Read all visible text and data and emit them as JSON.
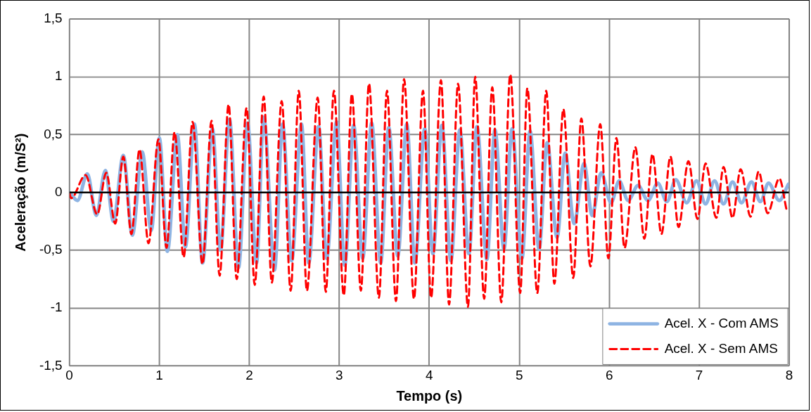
{
  "chart_data": {
    "type": "line",
    "xlabel": "Tempo (s)",
    "ylabel": "Aceleração (m/S²)",
    "xlim": [
      0,
      8
    ],
    "xticks": [
      0,
      1,
      2,
      3,
      4,
      5,
      6,
      7,
      8
    ],
    "ylim": [
      -1.5,
      1.5
    ],
    "yticks": [
      {
        "value": -1.5,
        "label": "-1,5"
      },
      -1,
      {
        "value": -0.5,
        "label": "-0,5"
      },
      0,
      {
        "value": 0.5,
        "label": "0,5"
      },
      1,
      {
        "value": 1.5,
        "label": "1,5"
      }
    ],
    "grid": true,
    "legend": "bottom right",
    "marker": "none",
    "series": [
      {
        "name": "Acel. X - Com AMS",
        "color": "#8eb4e3",
        "line_style": "solid",
        "x": [
          0,
          0.09,
          0.2,
          0.3,
          0.4,
          0.49,
          0.6,
          0.7,
          0.81,
          0.91,
          1.0,
          1.09,
          1.2,
          1.29,
          1.39,
          1.48,
          1.59,
          1.68,
          1.78,
          1.88,
          1.98,
          2.08,
          2.16,
          2.28,
          2.37,
          2.47,
          2.58,
          2.66,
          2.77,
          2.86,
          2.97,
          3.06,
          3.16,
          3.26,
          3.36,
          3.46,
          3.55,
          3.65,
          3.75,
          3.84,
          3.95,
          4.04,
          4.14,
          4.24,
          4.34,
          4.44,
          4.53,
          4.64,
          4.73,
          4.83,
          4.92,
          5.03,
          5.12,
          5.22,
          5.31,
          5.42,
          5.51,
          5.61,
          5.72,
          5.81,
          5.91,
          6.02,
          6.11,
          6.21,
          6.32,
          6.43,
          6.54,
          6.64,
          6.74,
          6.86,
          6.97,
          7.07,
          7.17,
          7.27,
          7.37,
          7.47,
          7.58,
          7.68,
          7.77,
          7.89,
          7.99
        ],
        "values": [
          0,
          -0.07,
          0.16,
          -0.2,
          0.19,
          -0.25,
          0.32,
          -0.37,
          0.35,
          -0.33,
          0.47,
          -0.51,
          0.5,
          -0.47,
          0.59,
          -0.61,
          0.55,
          -0.5,
          0.63,
          -0.65,
          0.6,
          -0.61,
          0.65,
          -0.67,
          0.59,
          -0.59,
          0.59,
          -0.61,
          0.57,
          -0.57,
          0.61,
          -0.63,
          0.58,
          -0.57,
          0.6,
          -0.61,
          0.56,
          -0.55,
          0.59,
          -0.61,
          0.55,
          -0.53,
          0.58,
          -0.59,
          0.54,
          -0.53,
          0.57,
          -0.58,
          0.54,
          -0.49,
          0.55,
          -0.57,
          0.53,
          -0.49,
          0.43,
          -0.39,
          0.34,
          -0.27,
          0.25,
          -0.2,
          0.17,
          -0.09,
          0.1,
          -0.07,
          0.06,
          -0.07,
          0.08,
          -0.08,
          0.11,
          -0.09,
          0.1,
          -0.1,
          0.1,
          -0.1,
          0.09,
          -0.09,
          0.09,
          -0.08,
          0.08,
          -0.07,
          0.07
        ]
      },
      {
        "name": "Acel. X - Sem AMS",
        "color": "#ff0000",
        "line_style": "dashed",
        "x": [
          0,
          0.02,
          0.18,
          0.31,
          0.41,
          0.51,
          0.6,
          0.69,
          0.78,
          0.88,
          0.99,
          1.08,
          1.17,
          1.27,
          1.37,
          1.48,
          1.58,
          1.67,
          1.77,
          1.86,
          1.97,
          2.06,
          2.16,
          2.25,
          2.36,
          2.46,
          2.55,
          2.64,
          2.76,
          2.85,
          2.94,
          3.05,
          3.14,
          3.24,
          3.33,
          3.44,
          3.53,
          3.63,
          3.72,
          3.83,
          3.93,
          4.02,
          4.13,
          4.22,
          4.32,
          4.43,
          4.51,
          4.61,
          4.7,
          4.8,
          4.9,
          5.01,
          5.09,
          5.2,
          5.3,
          5.39,
          5.49,
          5.6,
          5.69,
          5.79,
          5.9,
          5.99,
          6.08,
          6.17,
          6.29,
          6.39,
          6.48,
          6.58,
          6.68,
          6.77,
          6.88,
          6.98,
          7.07,
          7.19,
          7.27,
          7.37,
          7.46,
          7.57,
          7.66,
          7.76,
          7.89,
          7.97
        ],
        "values": [
          0,
          -0.05,
          0.15,
          -0.19,
          0.17,
          -0.27,
          0.31,
          -0.36,
          0.37,
          -0.44,
          0.46,
          -0.48,
          0.52,
          -0.56,
          0.61,
          -0.62,
          0.62,
          -0.72,
          0.76,
          -0.75,
          0.73,
          -0.8,
          0.83,
          -0.78,
          0.79,
          -0.85,
          0.88,
          -0.85,
          0.82,
          -0.86,
          0.88,
          -0.89,
          0.85,
          -0.85,
          0.94,
          -0.91,
          0.88,
          -0.94,
          0.98,
          -0.92,
          0.88,
          -0.91,
          0.97,
          -0.97,
          0.94,
          -0.99,
          1.0,
          -0.92,
          0.91,
          -0.95,
          1.02,
          -0.87,
          0.9,
          -0.87,
          0.88,
          -0.79,
          0.72,
          -0.74,
          0.64,
          -0.64,
          0.59,
          -0.57,
          0.47,
          -0.48,
          0.39,
          -0.4,
          0.33,
          -0.36,
          0.31,
          -0.3,
          0.27,
          -0.23,
          0.25,
          -0.22,
          0.22,
          -0.22,
          0.2,
          -0.21,
          0.18,
          -0.18,
          0.12,
          -0.15
        ]
      }
    ]
  }
}
